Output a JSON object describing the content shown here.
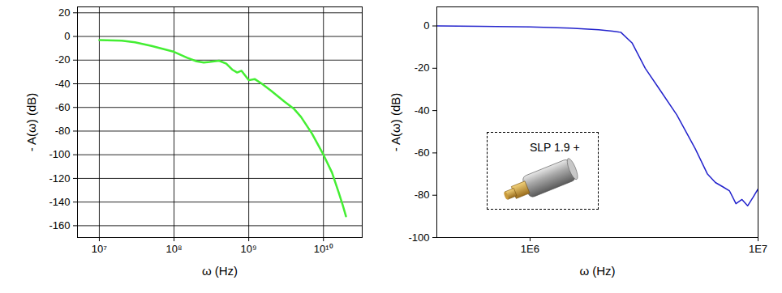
{
  "chart_data": [
    {
      "type": "line",
      "x_label": "ω (Hz)",
      "y_label": "- A(ω) (dB)",
      "x": [
        10000000,
        20000000,
        30000000,
        50000000,
        100000000,
        150000000,
        200000000,
        250000000,
        300000000,
        400000000,
        500000000,
        600000000,
        700000000,
        800000000,
        1000000000,
        1200000000,
        1500000000,
        2000000000,
        3000000000,
        4000000000,
        5000000000,
        7000000000,
        10000000000,
        13000000000,
        16000000000,
        18000000000,
        20000000000
      ],
      "values": [
        -3,
        -3.5,
        -5,
        -8,
        -13,
        -18,
        -21,
        -22,
        -21.5,
        -20.5,
        -23,
        -28,
        -30.5,
        -29,
        -37,
        -36,
        -40,
        -46,
        -55,
        -61,
        -68,
        -82,
        -100,
        -115,
        -132,
        -142,
        -152
      ],
      "color": "#44ee33",
      "log": "x",
      "xlim": [
        5100000,
        33000000000
      ],
      "ylim": [
        -170,
        25
      ],
      "xticks": [
        {
          "value": 10000000,
          "label": "10⁷"
        },
        {
          "value": 100000000,
          "label": "10⁸"
        },
        {
          "value": 1000000000,
          "label": "10⁹"
        },
        {
          "value": 10000000000,
          "label": "10¹⁰"
        }
      ],
      "yticks": [
        20,
        0,
        -20,
        -40,
        -60,
        -80,
        -100,
        -120,
        -140,
        -160
      ],
      "grid": true
    },
    {
      "type": "line",
      "x_label": "ω (Hz)",
      "y_label": "- A(ω) (dB)",
      "annotation": "SLP 1.9 +",
      "x": [
        390000,
        600000,
        1000000,
        1500000,
        2000000,
        2300000,
        2500000,
        2800000,
        3200000,
        3700000,
        4400000,
        5300000,
        6000000,
        6500000,
        7000000,
        7500000,
        8000000,
        8500000,
        9000000,
        9500000,
        10000000
      ],
      "values": [
        0,
        -0.2,
        -0.5,
        -1,
        -1.8,
        -2.5,
        -3,
        -8,
        -20,
        -30,
        -42,
        -58,
        -70,
        -74,
        -76,
        -78,
        -84,
        -82,
        -85,
        -81,
        -77
      ],
      "color": "#2222cc",
      "log": "x",
      "xlim": [
        390000,
        10000000
      ],
      "ylim": [
        -100,
        9
      ],
      "xticks": [
        {
          "value": 1000000,
          "label": "1E6"
        },
        {
          "value": 10000000,
          "label": "1E7"
        }
      ],
      "yticks": [
        0,
        -20,
        -40,
        -60,
        -80,
        -100
      ],
      "grid": false
    }
  ]
}
